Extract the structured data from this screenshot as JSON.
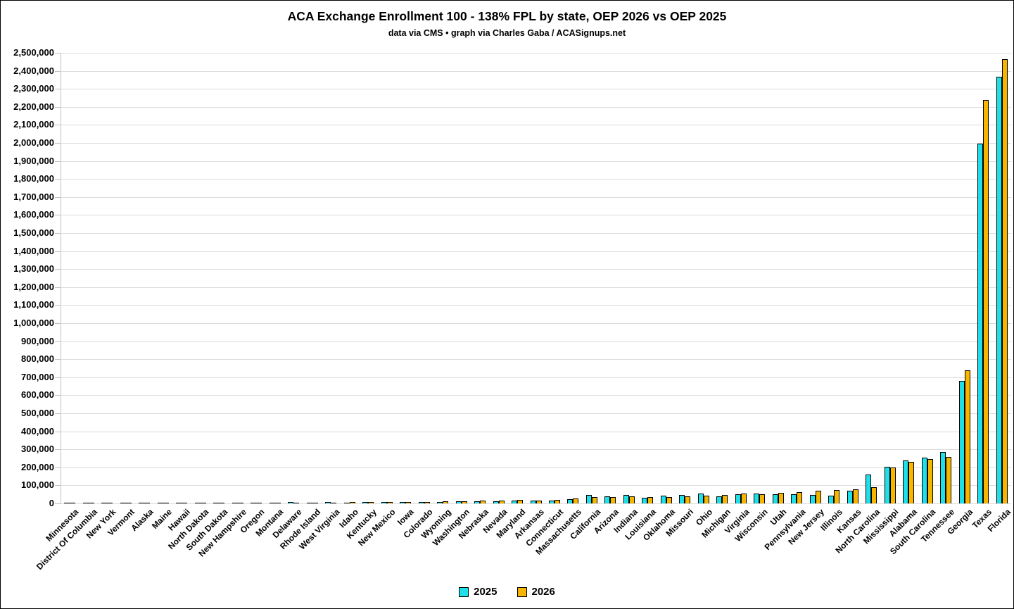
{
  "chart_data": {
    "type": "bar",
    "title": "ACA Exchange Enrollment 100 - 138% FPL by state, OEP 2026 vs OEP 2025",
    "subtitle": "data via CMS • graph via Charles Gaba / ACASignups.net",
    "categories": [
      "Minnesota",
      "District Of Columbia",
      "New York",
      "Vermont",
      "Alaska",
      "Maine",
      "Hawaii",
      "North Dakota",
      "South Dakota",
      "New Hampshire",
      "Oregon",
      "Montana",
      "Delaware",
      "Rhode Island",
      "West Virginia",
      "Idaho",
      "Kentucky",
      "New Mexico",
      "Iowa",
      "Colorado",
      "Wyoming",
      "Washington",
      "Nebraska",
      "Nevada",
      "Maryland",
      "Arkansas",
      "Connecticut",
      "Massachusetts",
      "California",
      "Arizona",
      "Indiana",
      "Louisiana",
      "Oklahoma",
      "Missouri",
      "Ohio",
      "Michigan",
      "Virginia",
      "Wisconsin",
      "Utah",
      "Pennsylvania",
      "New Jersey",
      "Illinois",
      "Kansas",
      "North Carolina",
      "Mississippi",
      "Alabama",
      "South Carolina",
      "Tennessee",
      "Georgia",
      "Texas",
      "Florida"
    ],
    "series": [
      {
        "name": "2025",
        "color": "#1FDFE8",
        "values": [
          0,
          100,
          200,
          300,
          800,
          1200,
          1200,
          1800,
          2000,
          2000,
          2500,
          2800,
          6000,
          3500,
          6500,
          5000,
          9000,
          8500,
          8000,
          9000,
          8000,
          12000,
          13500,
          13000,
          14000,
          16500,
          15000,
          25000,
          45000,
          41000,
          45000,
          32000,
          44000,
          48000,
          56000,
          41000,
          49000,
          56000,
          50000,
          49000,
          46000,
          43000,
          72000,
          161000,
          205000,
          238000,
          255000,
          287000,
          681000,
          1996000,
          2367000
        ]
      },
      {
        "name": "2026",
        "color": "#F6B600",
        "values": [
          0,
          100,
          300,
          400,
          900,
          1500,
          1600,
          2000,
          2500,
          2600,
          2800,
          3000,
          4000,
          4500,
          4500,
          6500,
          8500,
          8000,
          9000,
          9500,
          10000,
          13000,
          14000,
          17500,
          19000,
          17000,
          21500,
          29000,
          35000,
          37000,
          40000,
          35000,
          37000,
          39000,
          43000,
          47000,
          53000,
          51000,
          57000,
          62000,
          70000,
          75000,
          78000,
          91000,
          200000,
          232000,
          247000,
          259000,
          740000,
          2240000,
          2464000
        ]
      }
    ],
    "ylim": [
      0,
      2500000
    ],
    "y_step": 100000,
    "y_tick_labels": [
      "0",
      "100,000",
      "200,000",
      "300,000",
      "400,000",
      "500,000",
      "600,000",
      "700,000",
      "800,000",
      "900,000",
      "1,000,000",
      "1,100,000",
      "1,200,000",
      "1,300,000",
      "1,400,000",
      "1,500,000",
      "1,600,000",
      "1,700,000",
      "1,800,000",
      "1,900,000",
      "2,000,000",
      "2,100,000",
      "2,200,000",
      "2,300,000",
      "2,400,000",
      "2,500,000"
    ],
    "grid": true,
    "legend_position": "bottom",
    "gridline_color": "#dcdcdc",
    "axis_color": "#c0c0c0"
  }
}
